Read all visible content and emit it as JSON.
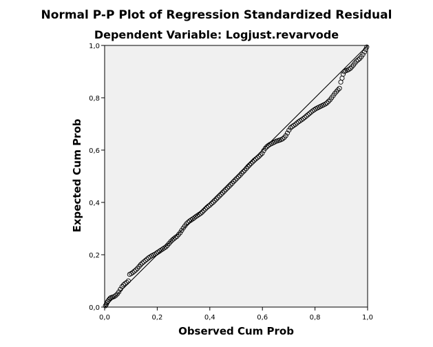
{
  "chart_data": {
    "type": "scatter",
    "title": "Normal P-P Plot of Regression Standardized Residual",
    "subtitle": "Dependent Variable: Logjust.revarvode",
    "xlabel": "Observed Cum Prob",
    "ylabel": "Expected Cum Prob",
    "xlim": [
      0,
      1
    ],
    "ylim": [
      0,
      1
    ],
    "xticks": [
      "0,0",
      "0,2",
      "0,4",
      "0,6",
      "0,8",
      "1,0"
    ],
    "yticks": [
      "0,0",
      "0,2",
      "0,4",
      "0,6",
      "0,8",
      "1,0"
    ],
    "reference_line": [
      [
        0,
        0
      ],
      [
        1,
        1
      ]
    ],
    "grid": false,
    "plot_background": "#f0f0f0",
    "marker": "open-circle",
    "series": [
      {
        "points": [
          [
            0.003,
            0.005
          ],
          [
            0.006,
            0.01
          ],
          [
            0.009,
            0.016
          ],
          [
            0.012,
            0.022
          ],
          [
            0.016,
            0.028
          ],
          [
            0.02,
            0.033
          ],
          [
            0.024,
            0.036
          ],
          [
            0.03,
            0.038
          ],
          [
            0.036,
            0.04
          ],
          [
            0.042,
            0.044
          ],
          [
            0.048,
            0.05
          ],
          [
            0.054,
            0.058
          ],
          [
            0.06,
            0.068
          ],
          [
            0.066,
            0.078
          ],
          [
            0.072,
            0.085
          ],
          [
            0.078,
            0.09
          ],
          [
            0.084,
            0.094
          ],
          [
            0.09,
            0.1
          ],
          [
            0.095,
            0.125
          ],
          [
            0.101,
            0.128
          ],
          [
            0.107,
            0.132
          ],
          [
            0.113,
            0.137
          ],
          [
            0.119,
            0.142
          ],
          [
            0.125,
            0.148
          ],
          [
            0.131,
            0.155
          ],
          [
            0.137,
            0.162
          ],
          [
            0.143,
            0.168
          ],
          [
            0.149,
            0.173
          ],
          [
            0.155,
            0.178
          ],
          [
            0.161,
            0.183
          ],
          [
            0.167,
            0.188
          ],
          [
            0.173,
            0.192
          ],
          [
            0.179,
            0.196
          ],
          [
            0.185,
            0.199
          ],
          [
            0.191,
            0.202
          ],
          [
            0.197,
            0.206
          ],
          [
            0.203,
            0.21
          ],
          [
            0.209,
            0.214
          ],
          [
            0.215,
            0.218
          ],
          [
            0.221,
            0.222
          ],
          [
            0.227,
            0.226
          ],
          [
            0.233,
            0.23
          ],
          [
            0.239,
            0.236
          ],
          [
            0.245,
            0.243
          ],
          [
            0.251,
            0.25
          ],
          [
            0.257,
            0.256
          ],
          [
            0.263,
            0.261
          ],
          [
            0.269,
            0.266
          ],
          [
            0.275,
            0.27
          ],
          [
            0.281,
            0.277
          ],
          [
            0.287,
            0.284
          ],
          [
            0.293,
            0.293
          ],
          [
            0.299,
            0.302
          ],
          [
            0.305,
            0.31
          ],
          [
            0.311,
            0.318
          ],
          [
            0.317,
            0.324
          ],
          [
            0.323,
            0.329
          ],
          [
            0.329,
            0.333
          ],
          [
            0.335,
            0.337
          ],
          [
            0.341,
            0.341
          ],
          [
            0.347,
            0.346
          ],
          [
            0.353,
            0.35
          ],
          [
            0.359,
            0.354
          ],
          [
            0.365,
            0.358
          ],
          [
            0.371,
            0.363
          ],
          [
            0.377,
            0.369
          ],
          [
            0.383,
            0.375
          ],
          [
            0.389,
            0.381
          ],
          [
            0.395,
            0.386
          ],
          [
            0.401,
            0.39
          ],
          [
            0.407,
            0.396
          ],
          [
            0.413,
            0.401
          ],
          [
            0.419,
            0.407
          ],
          [
            0.425,
            0.413
          ],
          [
            0.431,
            0.419
          ],
          [
            0.437,
            0.425
          ],
          [
            0.443,
            0.431
          ],
          [
            0.449,
            0.437
          ],
          [
            0.455,
            0.443
          ],
          [
            0.461,
            0.449
          ],
          [
            0.467,
            0.455
          ],
          [
            0.473,
            0.461
          ],
          [
            0.479,
            0.467
          ],
          [
            0.485,
            0.473
          ],
          [
            0.491,
            0.48
          ],
          [
            0.497,
            0.486
          ],
          [
            0.503,
            0.492
          ],
          [
            0.509,
            0.498
          ],
          [
            0.515,
            0.504
          ],
          [
            0.521,
            0.511
          ],
          [
            0.527,
            0.517
          ],
          [
            0.533,
            0.523
          ],
          [
            0.539,
            0.53
          ],
          [
            0.545,
            0.537
          ],
          [
            0.551,
            0.543
          ],
          [
            0.557,
            0.549
          ],
          [
            0.563,
            0.555
          ],
          [
            0.569,
            0.561
          ],
          [
            0.575,
            0.566
          ],
          [
            0.581,
            0.571
          ],
          [
            0.587,
            0.576
          ],
          [
            0.593,
            0.582
          ],
          [
            0.599,
            0.588
          ],
          [
            0.605,
            0.598
          ],
          [
            0.611,
            0.607
          ],
          [
            0.617,
            0.613
          ],
          [
            0.623,
            0.618
          ],
          [
            0.629,
            0.622
          ],
          [
            0.635,
            0.625
          ],
          [
            0.641,
            0.628
          ],
          [
            0.647,
            0.631
          ],
          [
            0.653,
            0.634
          ],
          [
            0.659,
            0.636
          ],
          [
            0.665,
            0.638
          ],
          [
            0.671,
            0.64
          ],
          [
            0.677,
            0.643
          ],
          [
            0.683,
            0.648
          ],
          [
            0.689,
            0.655
          ],
          [
            0.695,
            0.665
          ],
          [
            0.701,
            0.676
          ],
          [
            0.707,
            0.685
          ],
          [
            0.713,
            0.69
          ],
          [
            0.719,
            0.694
          ],
          [
            0.725,
            0.698
          ],
          [
            0.731,
            0.703
          ],
          [
            0.737,
            0.708
          ],
          [
            0.743,
            0.712
          ],
          [
            0.749,
            0.716
          ],
          [
            0.755,
            0.72
          ],
          [
            0.761,
            0.725
          ],
          [
            0.767,
            0.73
          ],
          [
            0.773,
            0.735
          ],
          [
            0.779,
            0.74
          ],
          [
            0.785,
            0.745
          ],
          [
            0.791,
            0.75
          ],
          [
            0.797,
            0.754
          ],
          [
            0.803,
            0.758
          ],
          [
            0.809,
            0.761
          ],
          [
            0.815,
            0.764
          ],
          [
            0.821,
            0.767
          ],
          [
            0.827,
            0.77
          ],
          [
            0.833,
            0.773
          ],
          [
            0.839,
            0.776
          ],
          [
            0.845,
            0.78
          ],
          [
            0.851,
            0.786
          ],
          [
            0.857,
            0.792
          ],
          [
            0.863,
            0.8
          ],
          [
            0.869,
            0.808
          ],
          [
            0.875,
            0.816
          ],
          [
            0.881,
            0.823
          ],
          [
            0.887,
            0.83
          ],
          [
            0.893,
            0.836
          ],
          [
            0.898,
            0.86
          ],
          [
            0.903,
            0.875
          ],
          [
            0.907,
            0.89
          ],
          [
            0.911,
            0.9
          ],
          [
            0.916,
            0.903
          ],
          [
            0.922,
            0.905
          ],
          [
            0.928,
            0.908
          ],
          [
            0.934,
            0.912
          ],
          [
            0.94,
            0.918
          ],
          [
            0.946,
            0.925
          ],
          [
            0.952,
            0.933
          ],
          [
            0.958,
            0.94
          ],
          [
            0.964,
            0.945
          ],
          [
            0.97,
            0.95
          ],
          [
            0.976,
            0.957
          ],
          [
            0.982,
            0.965
          ],
          [
            0.988,
            0.975
          ],
          [
            0.993,
            0.985
          ],
          [
            0.997,
            0.994
          ]
        ]
      }
    ]
  }
}
